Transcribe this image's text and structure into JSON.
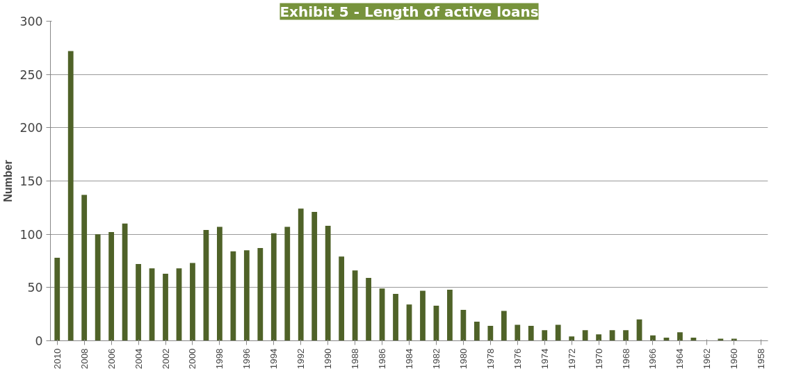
{
  "chart_data": {
    "type": "bar",
    "title": "Exhibit 5 - Length of active loans",
    "ylabel": "Number",
    "categories": [
      "2010",
      null,
      "2008",
      null,
      "2006",
      null,
      "2004",
      null,
      "2002",
      null,
      "2000",
      null,
      "1998",
      null,
      "1996",
      null,
      "1994",
      null,
      "1992",
      null,
      "1990",
      null,
      "1988",
      null,
      "1986",
      null,
      "1984",
      null,
      "1982",
      null,
      "1980",
      null,
      "1978",
      null,
      "1976",
      null,
      "1974",
      null,
      "1972",
      null,
      "1970",
      null,
      "1968",
      null,
      "1966",
      null,
      "1964",
      null,
      "1962",
      null,
      "1960",
      null,
      "1958"
    ],
    "values": [
      78,
      272,
      137,
      100,
      102,
      110,
      72,
      68,
      63,
      68,
      73,
      104,
      107,
      84,
      85,
      87,
      101,
      107,
      124,
      121,
      108,
      79,
      66,
      59,
      49,
      44,
      34,
      47,
      33,
      48,
      29,
      18,
      14,
      28,
      15,
      14,
      10,
      15,
      4,
      10,
      6,
      10,
      10,
      20,
      5,
      3,
      8,
      3,
      0,
      2,
      2,
      0,
      0
    ],
    "color": "#4f6228",
    "ylim": [
      0,
      300
    ],
    "yticks": [
      0,
      50,
      100,
      150,
      200,
      250,
      300
    ],
    "grid": "y"
  }
}
